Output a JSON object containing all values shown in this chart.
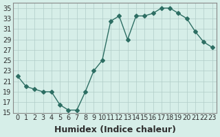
{
  "xlabel": "Humidex (Indice chaleur)",
  "ylabel": "",
  "x_values": [
    0,
    1,
    2,
    3,
    4,
    5,
    6,
    7,
    8,
    9,
    10,
    11,
    12,
    13,
    14,
    15,
    16,
    17,
    18,
    19,
    20,
    21,
    22,
    23
  ],
  "y_values": [
    22,
    20,
    19.5,
    19,
    19,
    16.5,
    15.5,
    15.5,
    19,
    23,
    25,
    32.5,
    33.5,
    29,
    33.5,
    33.5,
    34,
    35,
    35,
    34,
    33,
    30.5,
    28.5,
    27.5
  ],
  "ylim": [
    15,
    36
  ],
  "yticks": [
    15,
    17,
    19,
    21,
    23,
    25,
    27,
    29,
    31,
    33,
    35
  ],
  "xticks": [
    0,
    1,
    2,
    3,
    4,
    5,
    6,
    7,
    8,
    9,
    10,
    11,
    12,
    13,
    14,
    15,
    16,
    17,
    18,
    19,
    20,
    21,
    22,
    23
  ],
  "line_color": "#2d6e63",
  "marker": "D",
  "marker_size": 3,
  "bg_color": "#d6eee8",
  "grid_color": "#b0ccc7",
  "tick_label_fontsize": 7,
  "xlabel_fontsize": 9
}
